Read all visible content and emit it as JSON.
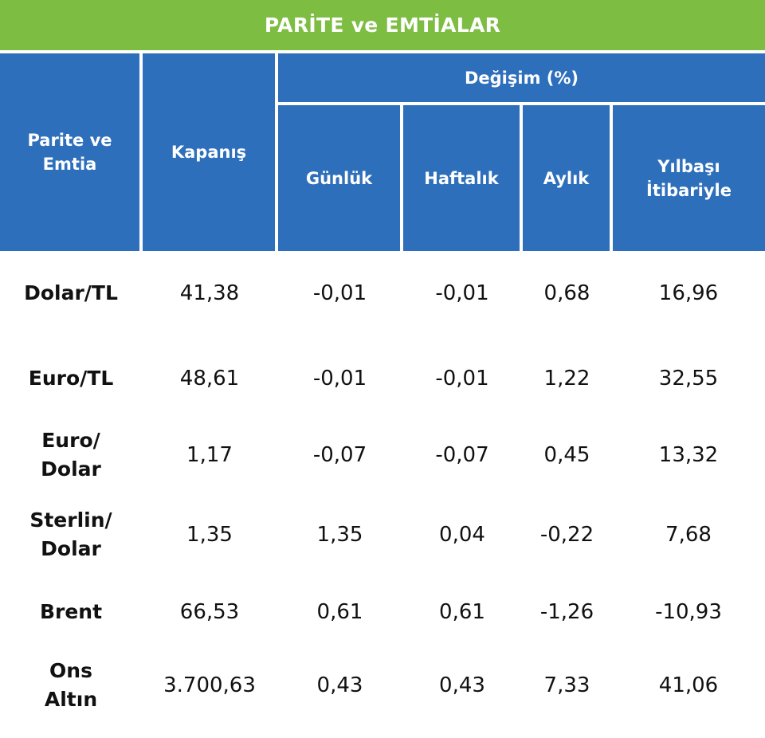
{
  "title": "PARİTE ve EMTİALAR",
  "headers": {
    "pair": "Parite ve Emtia",
    "close": "Kapanış",
    "change_group": "Değişim (%)",
    "daily": "Günlük",
    "weekly": "Haftalık",
    "monthly": "Aylık",
    "ytd": "Yılbaşı İtibariyle"
  },
  "rows": [
    {
      "name": "Dolar/TL",
      "close": "41,38",
      "daily": "-0,01",
      "weekly": "-0,01",
      "monthly": "0,68",
      "ytd": "16,96"
    },
    {
      "name": "Euro/TL",
      "close": "48,61",
      "daily": "-0,01",
      "weekly": "-0,01",
      "monthly": "1,22",
      "ytd": "32,55"
    },
    {
      "name": "Euro/ Dolar",
      "close": "1,17",
      "daily": "-0,07",
      "weekly": "-0,07",
      "monthly": "0,45",
      "ytd": "13,32"
    },
    {
      "name": "Sterlin/ Dolar",
      "close": "1,35",
      "daily": "1,35",
      "weekly": "0,04",
      "monthly": "-0,22",
      "ytd": "7,68"
    },
    {
      "name": "Brent",
      "close": "66,53",
      "daily": "0,61",
      "weekly": "0,61",
      "monthly": "-1,26",
      "ytd": "-10,93"
    },
    {
      "name": "Ons Altın",
      "close": "3.700,63",
      "daily": "0,43",
      "weekly": "0,43",
      "monthly": "7,33",
      "ytd": "41,06"
    }
  ]
}
